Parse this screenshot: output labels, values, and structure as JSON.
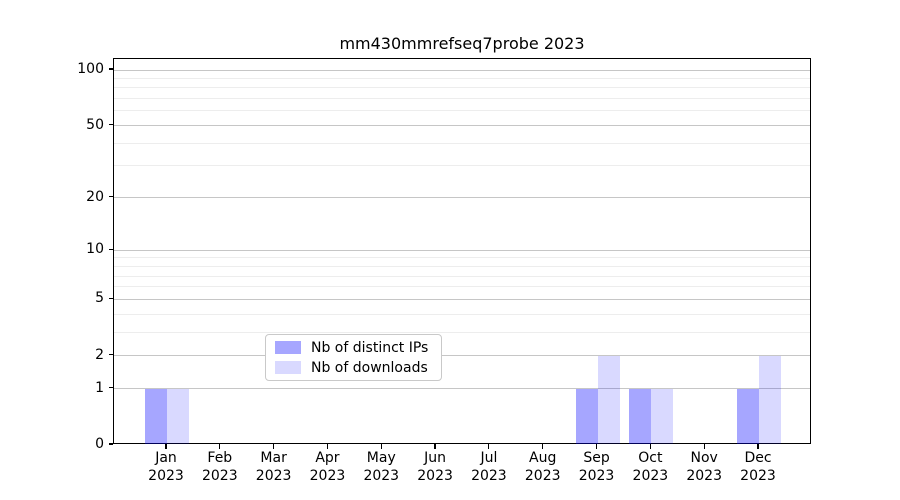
{
  "title": "mm430mmrefseq7probe 2023",
  "chart_data": {
    "type": "bar",
    "title": "mm430mmrefseq7probe 2023",
    "categories": [
      "Jan",
      "Feb",
      "Mar",
      "Apr",
      "May",
      "Jun",
      "Jul",
      "Aug",
      "Sep",
      "Oct",
      "Nov",
      "Dec"
    ],
    "year_label": "2023",
    "series": [
      {
        "name": "Nb of distinct IPs",
        "color": "rgba(0,0,255,0.35)",
        "color_hex": "#a6a6f2",
        "values": [
          1,
          0,
          0,
          0,
          0,
          0,
          0,
          0,
          1,
          1,
          0,
          1
        ]
      },
      {
        "name": "Nb of downloads",
        "color": "rgba(0,0,255,0.15)",
        "color_hex": "#dadaf9",
        "values": [
          1,
          0,
          0,
          0,
          0,
          0,
          0,
          0,
          2,
          1,
          0,
          2
        ]
      }
    ],
    "yscale": "log1p",
    "ylim": [
      0,
      115
    ],
    "yticks_major": [
      0,
      1,
      2,
      5,
      10,
      20,
      50,
      100
    ],
    "yticks_minor": [
      3,
      4,
      6,
      7,
      8,
      9,
      30,
      40,
      60,
      70,
      80,
      90
    ],
    "grid": "horizontal",
    "legend_position": "inside lower center",
    "bar_color_base": "#0000ff"
  }
}
